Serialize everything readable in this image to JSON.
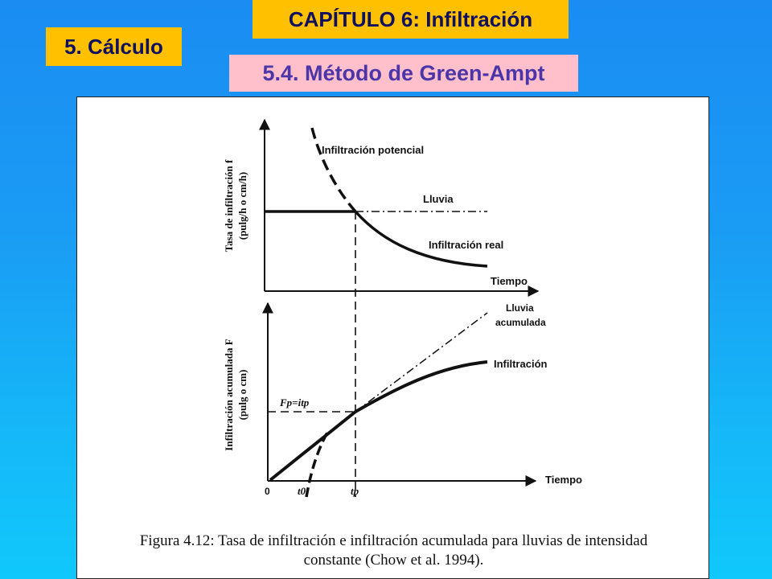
{
  "header": {
    "chapter_title": "CAPÍTULO 6: Infiltración",
    "section_title": "5. Cálculo",
    "subsection_title": "5.4. Método de Green-Ampt"
  },
  "colors": {
    "title_box": "#ffc000",
    "title_text": "#101060",
    "subsection_box": "#ffc0cb",
    "subsection_text": "#4b35a8",
    "background_top": "#1a8cf2",
    "background_bottom": "#10c8fb"
  },
  "figure": {
    "top_chart": {
      "ylabel_line1": "Tasa de infiltración f",
      "ylabel_line2": "(pulg/h o cm/h)",
      "curve_potential_label": "Infiltración potencial",
      "rain_label": "Lluvia",
      "curve_real_label": "Infiltración real",
      "xlabel": "Tiempo"
    },
    "bottom_chart": {
      "ylabel_line1": "Infiltración acumulada F",
      "ylabel_line2": "(pulg o cm)",
      "cumulative_rain_label_1": "Lluvia",
      "cumulative_rain_label_2": "acumulada",
      "infiltration_label": "Infiltración",
      "fp_label": "Fp=itp",
      "xlabel": "Tiempo",
      "tick_0": "0",
      "tick_t0": "t0",
      "tick_tp": "tp"
    },
    "caption_line1": "Figura 4.12: Tasa de infiltración e infiltración acumulada para lluvias de intensidad",
    "caption_line2": "constante (Chow et al. 1994)."
  }
}
